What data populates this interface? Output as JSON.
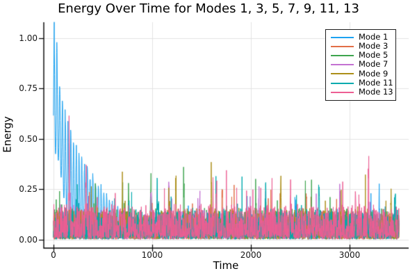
{
  "chart_data": {
    "type": "line",
    "title": "Energy Over Time for Modes 1, 3, 5, 7, 9, 11, 13",
    "xlabel": "Time",
    "ylabel": "Energy",
    "x_ticks": [
      0,
      1000,
      2000,
      3000
    ],
    "x_tick_labels": [
      "0",
      "1000",
      "2000",
      "3000"
    ],
    "y_ticks": [
      0,
      0.25,
      0.5,
      0.75,
      1.0
    ],
    "y_tick_labels": [
      "0.00",
      "0.25",
      "0.50",
      "0.75",
      "1.00"
    ],
    "xlim": [
      -98,
      3598
    ],
    "ylim": [
      -0.042,
      1.079
    ],
    "x_data_range": [
      0,
      3500
    ],
    "grid": true,
    "legend_position": "top-right",
    "colors": {
      "background": "#ffffff",
      "grid": "#e3e3e3",
      "axis": "#000000",
      "tick_text": "#151515"
    },
    "series": [
      {
        "name": "Mode 1",
        "color": "#1CA2F1",
        "behavior": "damped oscillation decaying into noise floor",
        "oscillation_period": 28,
        "peak_envelope": [
          [
            0,
            0.85
          ],
          [
            7,
            1.05
          ],
          [
            37,
            0.95
          ],
          [
            60,
            0.78
          ],
          [
            85,
            0.72
          ],
          [
            115,
            0.62
          ],
          [
            150,
            0.55
          ],
          [
            185,
            0.5
          ],
          [
            215,
            0.48
          ],
          [
            250,
            0.43
          ],
          [
            285,
            0.4
          ],
          [
            320,
            0.37
          ],
          [
            360,
            0.34
          ],
          [
            400,
            0.31
          ],
          [
            440,
            0.28
          ],
          [
            480,
            0.26
          ],
          [
            520,
            0.23
          ],
          [
            560,
            0.2
          ],
          [
            620,
            0.17
          ],
          [
            700,
            0.14
          ],
          [
            800,
            0.12
          ],
          [
            1000,
            0.09
          ],
          [
            3500,
            0.08
          ]
        ],
        "trough_envelope": [
          [
            0,
            0.45
          ],
          [
            60,
            0.38
          ],
          [
            100,
            0.22
          ],
          [
            150,
            0.1
          ],
          [
            200,
            0.05
          ],
          [
            300,
            0.03
          ],
          [
            3500,
            0.02
          ]
        ],
        "noise_level": 0.12,
        "spikes": [
          [
            2450,
            0.2
          ],
          [
            3300,
            0.17
          ]
        ]
      },
      {
        "name": "Mode 3",
        "color": "#E26E47",
        "noise_level": 0.13,
        "spikes": [
          [
            1710,
            0.2
          ],
          [
            2200,
            0.17
          ],
          [
            2560,
            0.21
          ],
          [
            40,
            0.09
          ]
        ]
      },
      {
        "name": "Mode 5",
        "color": "#3DA44E",
        "noise_level": 0.15,
        "spikes": [
          [
            700,
            0.18
          ],
          [
            760,
            0.2
          ],
          [
            985,
            0.26
          ],
          [
            1320,
            0.27
          ],
          [
            2050,
            0.19
          ]
        ]
      },
      {
        "name": "Mode 7",
        "color": "#C371D2",
        "noise_level": 0.14,
        "spikes": [
          [
            990,
            0.25
          ],
          [
            1170,
            0.26
          ],
          [
            1480,
            0.22
          ],
          [
            2080,
            0.24
          ],
          [
            2900,
            0.19
          ]
        ]
      },
      {
        "name": "Mode 9",
        "color": "#AC8E18",
        "noise_level": 0.15,
        "spikes": [
          [
            1240,
            0.24
          ],
          [
            1600,
            0.31
          ],
          [
            2300,
            0.21
          ],
          [
            3420,
            0.23
          ]
        ]
      },
      {
        "name": "Mode 11",
        "color": "#00AAAE",
        "noise_level": 0.15,
        "spikes": [
          [
            1050,
            0.22
          ],
          [
            2150,
            0.23
          ],
          [
            2690,
            0.28
          ],
          [
            3460,
            0.2
          ]
        ]
      },
      {
        "name": "Mode 13",
        "color": "#ED5E93",
        "noise_level": 0.17,
        "spikes": [
          [
            160,
            0.42
          ],
          [
            330,
            0.3
          ],
          [
            1650,
            0.25
          ],
          [
            2400,
            0.22
          ],
          [
            3060,
            0.28
          ],
          [
            3190,
            0.26
          ]
        ]
      }
    ]
  }
}
